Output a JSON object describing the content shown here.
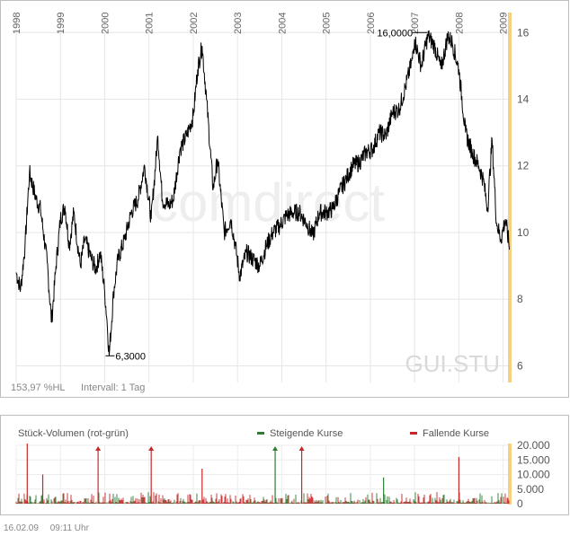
{
  "footer": {
    "date": "16.02.09",
    "time": "09:11 Uhr"
  },
  "watermark": {
    "brand": "comdirect",
    "symbol": "GUI.STU"
  },
  "status": {
    "percent_hl": "153,97 %HL",
    "interval": "Intervall: 1 Tag"
  },
  "volume_panel": {
    "title": "Stück-Volumen (rot-grün)",
    "legend_up": "Steigende Kurse",
    "legend_down": "Fallende Kurse",
    "up_color": "#2e7d32",
    "down_color": "#c62828"
  },
  "chart_data": [
    {
      "type": "line",
      "years": [
        "1998",
        "1999",
        "2000",
        "2001",
        "2002",
        "2003",
        "2004",
        "2005",
        "2006",
        "2007",
        "2008",
        "2009"
      ],
      "xlim": [
        1998.0,
        2009.15
      ],
      "ylim": [
        5.5,
        16.6
      ],
      "y_ticks": [
        6,
        8,
        10,
        12,
        14,
        16
      ],
      "grid": true,
      "line_color": "#000000",
      "highlight_color": "#f5d080",
      "annotations": [
        {
          "label": "16,0000",
          "x": 2007.0,
          "y": 16.0
        },
        {
          "label": "6,3000",
          "x": 2000.1,
          "y": 6.3
        }
      ],
      "series": [
        {
          "values_x": [
            1998.0,
            1998.1,
            1998.2,
            1998.3,
            1998.45,
            1998.55,
            1998.7,
            1998.8,
            1998.9,
            1999.0,
            1999.1,
            1999.2,
            1999.3,
            1999.45,
            1999.55,
            1999.7,
            1999.8,
            1999.9,
            2000.0,
            2000.05,
            2000.1,
            2000.2,
            2000.3,
            2000.45,
            2000.6,
            2000.75,
            2000.9,
            2001.05,
            2001.2,
            2001.3,
            2001.45,
            2001.55,
            2001.7,
            2001.85,
            2002.0,
            2002.1,
            2002.2,
            2002.3,
            2002.45,
            2002.55,
            2002.7,
            2002.85,
            2002.95,
            2003.05,
            2003.2,
            2003.35,
            2003.5,
            2003.65,
            2003.8,
            2003.95,
            2004.1,
            2004.25,
            2004.4,
            2004.55,
            2004.7,
            2004.85,
            2005.0,
            2005.15,
            2005.3,
            2005.45,
            2005.6,
            2005.75,
            2005.9,
            2006.05,
            2006.2,
            2006.35,
            2006.5,
            2006.65,
            2006.8,
            2006.95,
            2007.0,
            2007.15,
            2007.3,
            2007.45,
            2007.6,
            2007.75,
            2007.85,
            2008.0,
            2008.15,
            2008.3,
            2008.45,
            2008.55,
            2008.65,
            2008.75,
            2008.85,
            2008.95,
            2009.05,
            2009.15
          ],
          "values_y": [
            8.8,
            8.3,
            9.6,
            11.8,
            11.0,
            10.7,
            9.1,
            7.3,
            9.0,
            10.4,
            10.8,
            9.6,
            10.6,
            9.0,
            9.8,
            9.2,
            8.9,
            9.4,
            8.2,
            7.4,
            6.3,
            8.2,
            9.2,
            9.8,
            10.6,
            11.0,
            12.0,
            10.4,
            12.9,
            11.0,
            10.8,
            11.0,
            12.5,
            12.9,
            13.5,
            14.9,
            15.6,
            14.0,
            11.3,
            12.2,
            10.0,
            10.4,
            9.6,
            8.7,
            9.4,
            9.2,
            9.0,
            9.6,
            10.0,
            10.2,
            10.5,
            10.6,
            10.6,
            10.3,
            9.9,
            10.6,
            10.6,
            10.7,
            11.2,
            11.6,
            12.0,
            12.1,
            12.4,
            12.5,
            13.0,
            12.9,
            13.6,
            13.7,
            14.4,
            15.2,
            15.8,
            15.0,
            15.9,
            15.6,
            14.9,
            15.9,
            15.7,
            14.9,
            13.0,
            12.4,
            12.0,
            11.6,
            10.7,
            12.8,
            10.3,
            9.8,
            10.4,
            9.5
          ]
        }
      ]
    },
    {
      "type": "bar",
      "title": "Stück-Volumen (rot-grün)",
      "ylim": [
        0,
        20000
      ],
      "y_ticks": [
        0,
        5000,
        10000,
        15000,
        20000
      ],
      "y_tick_labels": [
        "0",
        "5.000",
        "10.000",
        "15.000",
        "20.000"
      ],
      "spikes": [
        {
          "x": 1998.25,
          "value": 21000,
          "direction": "down",
          "clipped": false
        },
        {
          "x": 1999.85,
          "value": 21000,
          "direction": "down",
          "clipped": true
        },
        {
          "x": 2001.05,
          "value": 21000,
          "direction": "down",
          "clipped": true
        },
        {
          "x": 2003.85,
          "value": 21000,
          "direction": "up",
          "clipped": true
        },
        {
          "x": 2004.45,
          "value": 21000,
          "direction": "down",
          "clipped": true
        },
        {
          "x": 2008.0,
          "value": 16000,
          "direction": "down",
          "clipped": false
        },
        {
          "x": 2006.3,
          "value": 9000,
          "direction": "up",
          "clipped": false
        },
        {
          "x": 2002.2,
          "value": 12000,
          "direction": "down",
          "clipped": false
        },
        {
          "x": 1998.6,
          "value": 10000,
          "direction": "down",
          "clipped": false
        }
      ]
    }
  ]
}
